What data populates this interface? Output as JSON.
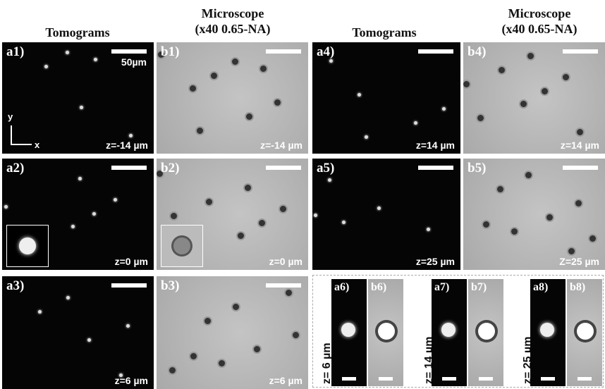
{
  "headers": [
    {
      "title": "Tomograms"
    },
    {
      "title": "Microscope",
      "subtitle": "(x40 0.65-NA)"
    },
    {
      "title": "Tomograms"
    },
    {
      "title": "Microscope",
      "subtitle": "(x40 0.65-NA)"
    }
  ],
  "axes": {
    "y": "y",
    "x": "x"
  },
  "scale_bar": "50µm",
  "panels": [
    {
      "label": "a1)",
      "z": "z=-14 µm"
    },
    {
      "label": "b1)",
      "z": "z=-14 µm"
    },
    {
      "label": "a4)",
      "z": "z=14 µm"
    },
    {
      "label": "b4)",
      "z": "z=14 µm"
    },
    {
      "label": "a2)",
      "z": "z=0 µm"
    },
    {
      "label": "b2)",
      "z": "z=0 µm"
    },
    {
      "label": "a5)",
      "z": "z=25 µm"
    },
    {
      "label": "b5)",
      "z": "Z=25 µm"
    },
    {
      "label": "a3)",
      "z": "z=6 µm"
    },
    {
      "label": "b3)",
      "z": "z=6 µm"
    }
  ],
  "insets": [
    {
      "z": "z= 6 µm",
      "tomogram": "a6)",
      "microscope": "b6)"
    },
    {
      "z": "z= 14 µm",
      "tomogram": "a7)",
      "microscope": "b7)"
    },
    {
      "z": "z= 25 µm",
      "tomogram": "a8)",
      "microscope": "b8)"
    }
  ]
}
